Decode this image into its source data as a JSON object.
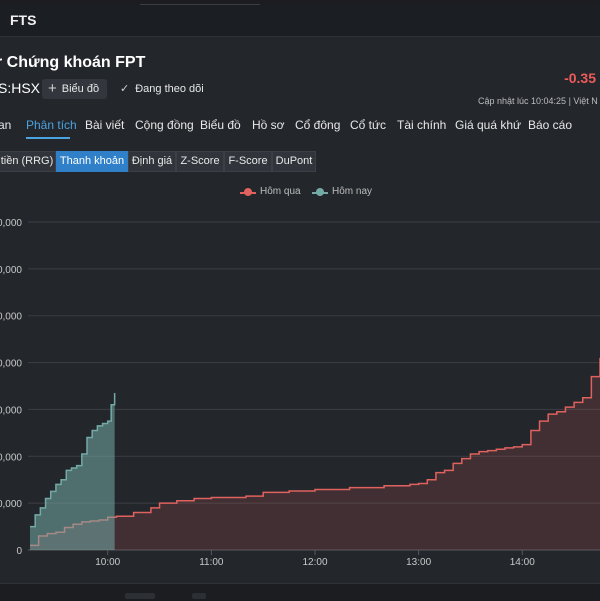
{
  "header": {
    "ticker": "FTS"
  },
  "company": {
    "name": "r Chứng khoán FPT",
    "exchange": "S:HSX",
    "chart_button_label": "Biểu đồ",
    "follow_label": "Đang theo dõi",
    "price_change": "-0.35",
    "updated_label": "Cập nhật lúc  10:04:25  |  Việt N"
  },
  "tabs": [
    "an",
    "Phân tích",
    "Bài viết",
    "Cộng đồng",
    "Biểu đồ",
    "Hồ sơ",
    "Cổ đông",
    "Cổ tức",
    "Tài chính",
    "Giá quá khứ",
    "Báo cáo"
  ],
  "active_tab": 1,
  "subtabs": [
    "tiền (RRG)",
    "Thanh khoản",
    "Định giá",
    "Z-Score",
    "F-Score",
    "DuPont"
  ],
  "active_subtab": 1,
  "colors": {
    "yesterday": "#e0625e",
    "today": "#74aaa6",
    "accent": "#4aa3df",
    "down": "#ee5b5b"
  },
  "chart_data": {
    "type": "area",
    "legend": {
      "position": "top-center"
    },
    "grid": true,
    "x_ticks": [
      "10:00",
      "11:00",
      "12:00",
      "13:00",
      "14:00"
    ],
    "y_tick_labels": [
      "0",
      "0,000",
      "0,000",
      "0,000",
      "0,000",
      "0,000",
      "0,000",
      "0,000"
    ],
    "ylim": [
      0,
      7000000
    ],
    "series": [
      {
        "name": "Hôm qua",
        "x": [
          "09:15",
          "09:20",
          "09:25",
          "09:30",
          "09:35",
          "09:40",
          "09:45",
          "09:50",
          "09:55",
          "10:00",
          "10:05",
          "10:15",
          "10:25",
          "10:30",
          "10:40",
          "10:50",
          "11:00",
          "11:20",
          "11:30",
          "11:45",
          "12:00",
          "12:20",
          "12:40",
          "12:55",
          "13:00",
          "13:05",
          "13:10",
          "13:15",
          "13:20",
          "13:25",
          "13:30",
          "13:35",
          "13:40",
          "13:45",
          "13:50",
          "13:55",
          "14:00",
          "14:05",
          "14:10",
          "14:15",
          "14:20",
          "14:25",
          "14:30",
          "14:35",
          "14:40",
          "14:45"
        ],
        "values": [
          100000,
          300000,
          350000,
          380000,
          480000,
          550000,
          600000,
          620000,
          640000,
          700000,
          720000,
          800000,
          900000,
          1000000,
          1050000,
          1100000,
          1120000,
          1150000,
          1230000,
          1260000,
          1290000,
          1330000,
          1370000,
          1400000,
          1420000,
          1500000,
          1650000,
          1700000,
          1850000,
          1950000,
          2050000,
          2100000,
          2120000,
          2150000,
          2180000,
          2200000,
          2250000,
          2550000,
          2750000,
          2900000,
          2950000,
          3050000,
          3150000,
          3250000,
          3700000,
          4100000
        ]
      },
      {
        "name": "Hôm nay",
        "x": [
          "09:15",
          "09:18",
          "09:21",
          "09:24",
          "09:27",
          "09:30",
          "09:33",
          "09:36",
          "09:39",
          "09:42",
          "09:45",
          "09:48",
          "09:51",
          "09:54",
          "09:57",
          "10:00",
          "10:02",
          "10:04"
        ],
        "values": [
          500000,
          750000,
          900000,
          1100000,
          1250000,
          1400000,
          1500000,
          1700000,
          1750000,
          1800000,
          2050000,
          2400000,
          2550000,
          2650000,
          2700000,
          2750000,
          3100000,
          3350000
        ]
      }
    ]
  }
}
